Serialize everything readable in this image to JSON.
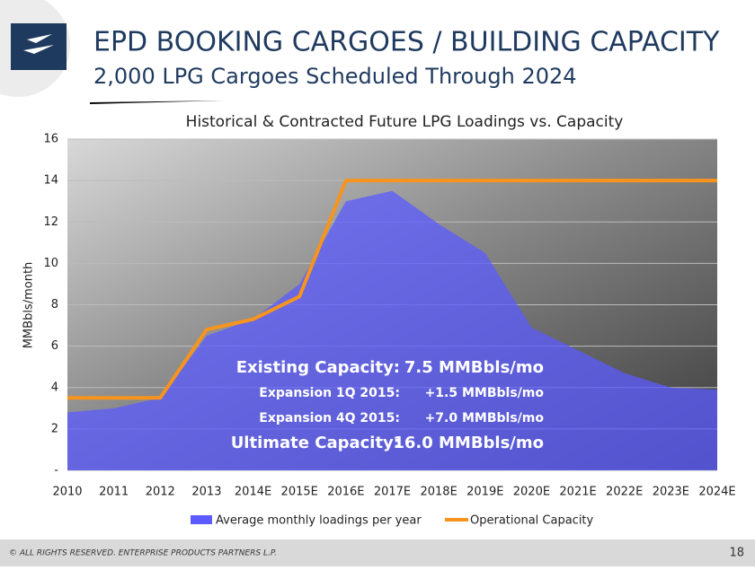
{
  "header": {
    "title": "EPD BOOKING CARGOES / BUILDING CAPACITY",
    "subtitle": "2,000 LPG Cargoes Scheduled Through 2024"
  },
  "chart_data": {
    "type": "area_line",
    "title": "Historical & Contracted Future LPG Loadings vs. Capacity",
    "y_label": "MMBbls/month",
    "categories": [
      "2010",
      "2011",
      "2012",
      "2013",
      "2014E",
      "2015E",
      "2016E",
      "2017E",
      "2018E",
      "2019E",
      "2020E",
      "2021E",
      "2022E",
      "2023E",
      "2024E"
    ],
    "series": [
      {
        "name": "Average monthly loadings per year",
        "kind": "area",
        "color": "#5b5bff",
        "values": [
          2.8,
          3.0,
          3.5,
          6.5,
          7.3,
          9.0,
          13.0,
          13.5,
          11.9,
          10.5,
          6.9,
          5.8,
          4.7,
          4.0,
          3.9
        ]
      },
      {
        "name": "Operational Capacity",
        "kind": "line",
        "color": "#f7941d",
        "values": [
          3.5,
          3.5,
          3.5,
          6.8,
          7.3,
          8.4,
          14,
          14,
          14,
          14,
          14,
          14,
          14,
          14,
          14
        ]
      }
    ],
    "ylim": [
      0,
      16
    ],
    "yticks": [
      {
        "value": 0,
        "label": "-"
      },
      2,
      4,
      6,
      8,
      10,
      12,
      14,
      16
    ],
    "grid": true,
    "annotations": [
      {
        "label": "Existing Capacity:",
        "value": "7.5 MMBbls/mo"
      },
      {
        "label": "Expansion 1Q 2015:",
        "value": "+1.5 MMBbls/mo"
      },
      {
        "label": "Expansion 4Q 2015:",
        "value": "+7.0 MMBbls/mo"
      },
      {
        "label": "Ultimate Capacity:",
        "value": "16.0 MMBbls/mo"
      }
    ]
  },
  "footer": {
    "copyright": "© ALL RIGHTS RESERVED. ENTERPRISE PRODUCTS PARTNERS L.P.",
    "page": "18"
  }
}
